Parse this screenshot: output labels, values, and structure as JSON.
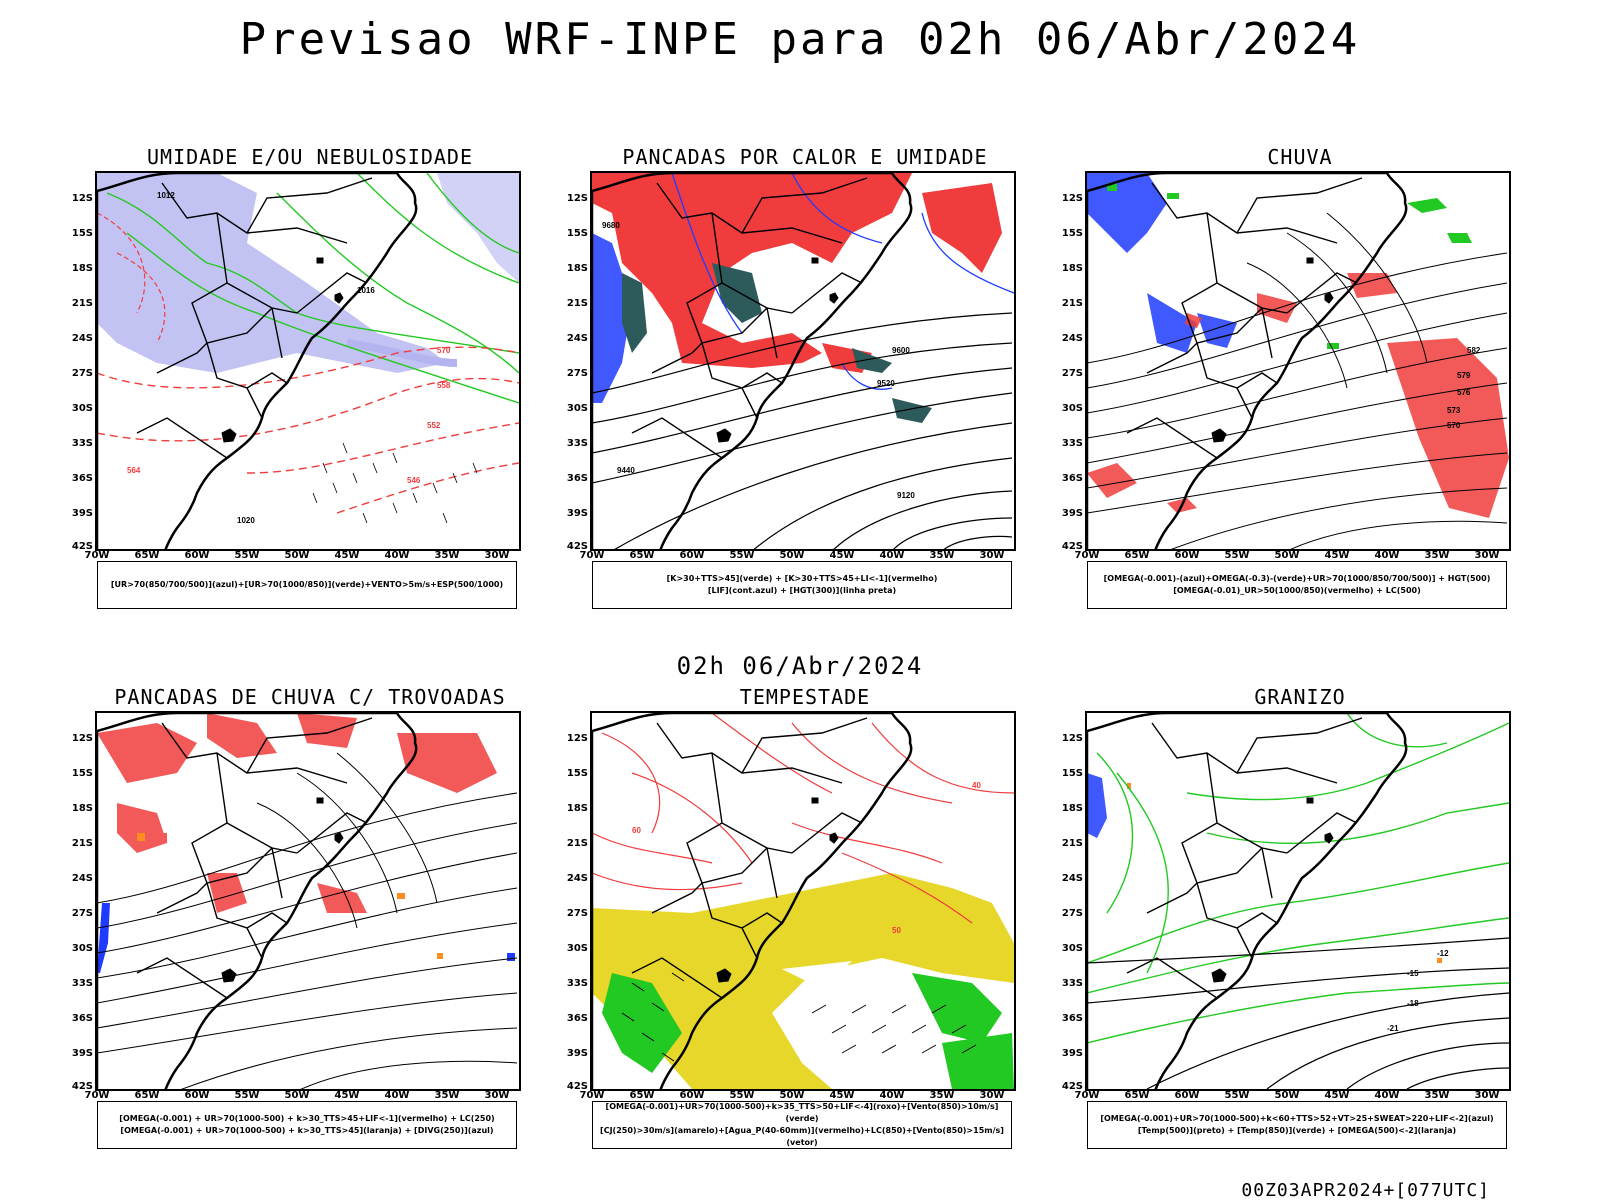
{
  "title": "Previsao WRF-INPE  para 02h 06/Abr/2024",
  "mid_date": "02h 06/Abr/2024",
  "footer": "00Z03APR2024+[077UTC]",
  "lat_labels": [
    "12S",
    "15S",
    "18S",
    "21S",
    "24S",
    "27S",
    "30S",
    "33S",
    "36S",
    "39S",
    "42S"
  ],
  "lon_labels": [
    "70W",
    "65W",
    "60W",
    "55W",
    "50W",
    "45W",
    "40W",
    "35W",
    "30W"
  ],
  "colors": {
    "red": "#f03c3c",
    "green": "#22c922",
    "blue": "#1e3cff",
    "lavender": "#b4b4f0",
    "yellow": "#e6d72a",
    "teal": "#2d5a5a",
    "orange": "#ff8c1e"
  },
  "panels": [
    {
      "title": "UMIDADE E/OU NEBULOSIDADE",
      "legend": [
        "[UR>70(850/700/500)](azul)+[UR>70(1000/850)](verde)+VENTO>5m/s+ESP(500/1000)"
      ],
      "contour_labels": [
        "1012",
        "1016",
        "1020",
        "570",
        "564",
        "558",
        "552",
        "546"
      ]
    },
    {
      "title": "PANCADAS POR CALOR E UMIDADE",
      "legend": [
        "[K>30+TTS>45](verde) + [K>30+TTS>45+LI<-1](vermelho)",
        "[LIF](cont.azul) + [HGT(300)](linha preta)"
      ],
      "contour_labels": [
        "9680",
        "9600",
        "9520",
        "9440",
        "9120"
      ]
    },
    {
      "title": "CHUVA",
      "legend": [
        "[OMEGA(-0.001)-(azul)+OMEGA(-0.3)-(verde)+UR>70(1000/850/700/500)] + HGT(500)",
        "[OMEGA(-0.01)_UR>50(1000/850)(vermelho) + LC(500)"
      ],
      "contour_labels": [
        "582",
        "579",
        "576",
        "573",
        "570"
      ]
    },
    {
      "title": "PANCADAS DE CHUVA C/ TROVOADAS",
      "legend": [
        "[OMEGA(-0.001) + UR>70(1000-500) + k>30_TTS>45+LIF<-1](vermelho) + LC(250)",
        "[OMEGA(-0.001) + UR>70(1000-500) + k>30_TTS>45](laranja) + [DIVG(250)](azul)"
      ],
      "contour_labels": []
    },
    {
      "title": "TEMPESTADE",
      "legend": [
        "[OMEGA(-0.001)+UR>70(1000-500)+k>35_TTS>50+LIF<-4](roxo)+[Vento(850)>10m/s](verde)",
        "[CJ(250)>30m/s](amarelo)+[Agua_P(40-60mm)](vermelho)+LC(850)+[Vento(850)>15m/s](vetor)"
      ],
      "contour_labels": [
        "40",
        "50",
        "60"
      ]
    },
    {
      "title": "GRANIZO",
      "legend": [
        "[OMEGA(-0.001)+UR>70(1000-500)+k<60+TTS>52+VT>25+SWEAT>220+LIF<-2](azul)",
        "[Temp(500)](preto) + [Temp(850)](verde) + [OMEGA(500)<-2](laranja)"
      ],
      "contour_labels": [
        "-12",
        "-15",
        "-18",
        "-21"
      ]
    }
  ]
}
